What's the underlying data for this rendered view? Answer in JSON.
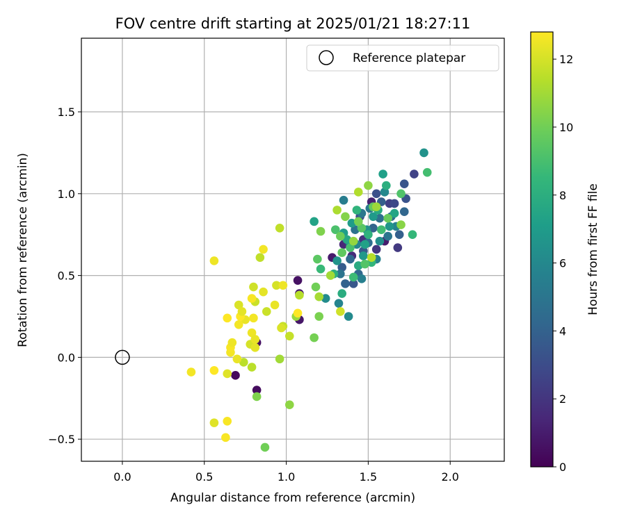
{
  "chart_data": {
    "type": "scatter",
    "title": "FOV centre drift starting at 2025/01/21 18:27:11",
    "xlabel": "Angular distance from reference (arcmin)",
    "ylabel": "Rotation from reference (arcmin)",
    "xlim": [
      -0.25,
      2.33
    ],
    "ylim": [
      -0.635,
      1.95
    ],
    "xticks": [
      0.0,
      0.5,
      1.0,
      1.5,
      2.0
    ],
    "xtick_labels": [
      "0.0",
      "0.5",
      "1.0",
      "1.5",
      "2.0"
    ],
    "yticks": [
      -0.5,
      0.0,
      0.5,
      1.0,
      1.5
    ],
    "ytick_labels": [
      "−0.5",
      "0.0",
      "0.5",
      "1.0",
      "1.5"
    ],
    "grid": true,
    "legend": {
      "position": "top-right",
      "entries": [
        "Reference platepar"
      ]
    },
    "reference_point": {
      "x": 0.0,
      "y": 0.0,
      "marker": "open-circle"
    },
    "colorbar": {
      "label": "Hours from first FF file",
      "colormap": "viridis",
      "range": [
        0,
        12.8
      ],
      "ticks": [
        0,
        2,
        4,
        6,
        8,
        10,
        12
      ],
      "tick_labels": [
        "0",
        "2",
        "4",
        "6",
        "8",
        "10",
        "12"
      ]
    },
    "colormap_stops": [
      "#440154",
      "#482878",
      "#3e4989",
      "#31688e",
      "#26828e",
      "#1f9e89",
      "#35b779",
      "#6ece58",
      "#b5de2b",
      "#fde725"
    ],
    "points": [
      {
        "x": 0.69,
        "y": -0.11,
        "c": 0.3
      },
      {
        "x": 0.82,
        "y": -0.2,
        "c": 0.4
      },
      {
        "x": 0.82,
        "y": 0.09,
        "c": 0.5
      },
      {
        "x": 1.07,
        "y": 0.47,
        "c": 0.6
      },
      {
        "x": 1.08,
        "y": 0.23,
        "c": 0.8
      },
      {
        "x": 1.08,
        "y": 0.39,
        "c": 1.0
      },
      {
        "x": 1.28,
        "y": 0.61,
        "c": 0.9
      },
      {
        "x": 1.6,
        "y": 0.71,
        "c": 1.0
      },
      {
        "x": 1.52,
        "y": 0.95,
        "c": 1.2
      },
      {
        "x": 1.35,
        "y": 0.69,
        "c": 1.4
      },
      {
        "x": 1.4,
        "y": 0.62,
        "c": 1.6
      },
      {
        "x": 1.47,
        "y": 0.72,
        "c": 1.8
      },
      {
        "x": 1.55,
        "y": 0.66,
        "c": 2.0
      },
      {
        "x": 1.68,
        "y": 0.67,
        "c": 2.2
      },
      {
        "x": 1.63,
        "y": 0.94,
        "c": 2.4
      },
      {
        "x": 1.78,
        "y": 1.12,
        "c": 2.6
      },
      {
        "x": 1.66,
        "y": 0.94,
        "c": 2.8
      },
      {
        "x": 1.45,
        "y": 0.86,
        "c": 3.0
      },
      {
        "x": 1.55,
        "y": 1.0,
        "c": 3.2
      },
      {
        "x": 1.73,
        "y": 0.97,
        "c": 3.3
      },
      {
        "x": 1.72,
        "y": 1.06,
        "c": 3.4
      },
      {
        "x": 1.41,
        "y": 0.45,
        "c": 3.5
      },
      {
        "x": 1.47,
        "y": 0.65,
        "c": 3.6
      },
      {
        "x": 1.34,
        "y": 0.55,
        "c": 3.7
      },
      {
        "x": 1.58,
        "y": 0.95,
        "c": 3.8
      },
      {
        "x": 1.69,
        "y": 0.75,
        "c": 3.9
      },
      {
        "x": 1.36,
        "y": 0.45,
        "c": 4.0
      },
      {
        "x": 1.53,
        "y": 0.79,
        "c": 4.1
      },
      {
        "x": 1.72,
        "y": 0.89,
        "c": 4.2
      },
      {
        "x": 1.44,
        "y": 0.51,
        "c": 4.3
      },
      {
        "x": 1.39,
        "y": 0.6,
        "c": 4.4
      },
      {
        "x": 1.64,
        "y": 0.86,
        "c": 4.5
      },
      {
        "x": 1.5,
        "y": 0.7,
        "c": 4.6
      },
      {
        "x": 1.57,
        "y": 0.85,
        "c": 4.7
      },
      {
        "x": 1.42,
        "y": 0.78,
        "c": 4.8
      },
      {
        "x": 1.33,
        "y": 0.51,
        "c": 4.9
      },
      {
        "x": 1.62,
        "y": 0.74,
        "c": 5.0
      },
      {
        "x": 1.46,
        "y": 0.88,
        "c": 5.1
      },
      {
        "x": 1.51,
        "y": 0.91,
        "c": 5.2
      },
      {
        "x": 1.39,
        "y": 0.69,
        "c": 5.3
      },
      {
        "x": 1.35,
        "y": 0.96,
        "c": 5.4
      },
      {
        "x": 1.46,
        "y": 0.48,
        "c": 5.5
      },
      {
        "x": 1.55,
        "y": 0.6,
        "c": 5.6
      },
      {
        "x": 1.67,
        "y": 0.8,
        "c": 5.7
      },
      {
        "x": 1.32,
        "y": 0.33,
        "c": 5.8
      },
      {
        "x": 1.43,
        "y": 0.69,
        "c": 5.9
      },
      {
        "x": 1.6,
        "y": 1.01,
        "c": 6.0
      },
      {
        "x": 1.38,
        "y": 0.25,
        "c": 6.1
      },
      {
        "x": 1.24,
        "y": 0.36,
        "c": 6.2
      },
      {
        "x": 1.57,
        "y": 0.71,
        "c": 6.3
      },
      {
        "x": 1.49,
        "y": 0.78,
        "c": 6.4
      },
      {
        "x": 1.84,
        "y": 1.25,
        "c": 6.5
      },
      {
        "x": 1.31,
        "y": 0.59,
        "c": 6.6
      },
      {
        "x": 1.63,
        "y": 0.8,
        "c": 6.7
      },
      {
        "x": 1.47,
        "y": 0.62,
        "c": 6.8
      },
      {
        "x": 1.53,
        "y": 0.86,
        "c": 6.9
      },
      {
        "x": 1.4,
        "y": 0.82,
        "c": 7.0
      },
      {
        "x": 1.35,
        "y": 0.76,
        "c": 7.1
      },
      {
        "x": 1.59,
        "y": 1.12,
        "c": 7.2
      },
      {
        "x": 1.48,
        "y": 0.69,
        "c": 7.3
      },
      {
        "x": 1.17,
        "y": 0.83,
        "c": 7.4
      },
      {
        "x": 1.66,
        "y": 0.88,
        "c": 7.5
      },
      {
        "x": 1.37,
        "y": 0.72,
        "c": 7.6
      },
      {
        "x": 1.56,
        "y": 0.9,
        "c": 7.7
      },
      {
        "x": 1.44,
        "y": 0.56,
        "c": 7.8
      },
      {
        "x": 1.34,
        "y": 0.39,
        "c": 7.9
      },
      {
        "x": 1.61,
        "y": 1.05,
        "c": 8.0
      },
      {
        "x": 1.29,
        "y": 0.51,
        "c": 8.1
      },
      {
        "x": 1.5,
        "y": 0.75,
        "c": 8.2
      },
      {
        "x": 1.43,
        "y": 0.9,
        "c": 8.3
      },
      {
        "x": 1.52,
        "y": 0.58,
        "c": 8.4
      },
      {
        "x": 1.77,
        "y": 0.75,
        "c": 8.5
      },
      {
        "x": 1.21,
        "y": 0.54,
        "c": 8.6
      },
      {
        "x": 1.41,
        "y": 0.49,
        "c": 8.7
      },
      {
        "x": 1.58,
        "y": 0.78,
        "c": 8.8
      },
      {
        "x": 1.86,
        "y": 1.13,
        "c": 8.9
      },
      {
        "x": 1.39,
        "y": 0.67,
        "c": 9.0
      },
      {
        "x": 1.3,
        "y": 0.78,
        "c": 9.1
      },
      {
        "x": 1.7,
        "y": 1.0,
        "c": 9.2
      },
      {
        "x": 1.48,
        "y": 0.57,
        "c": 9.3
      },
      {
        "x": 1.46,
        "y": 0.79,
        "c": 9.4
      },
      {
        "x": 1.19,
        "y": 0.6,
        "c": 9.5
      },
      {
        "x": 1.34,
        "y": 0.64,
        "c": 9.6
      },
      {
        "x": 1.53,
        "y": 0.92,
        "c": 9.7
      },
      {
        "x": 1.62,
        "y": 0.85,
        "c": 9.8
      },
      {
        "x": 1.33,
        "y": 0.74,
        "c": 9.9
      },
      {
        "x": 1.18,
        "y": 0.43,
        "c": 10.0
      },
      {
        "x": 1.44,
        "y": 0.83,
        "c": 10.1
      },
      {
        "x": 1.2,
        "y": 0.25,
        "c": 10.2
      },
      {
        "x": 0.82,
        "y": -0.24,
        "c": 10.3
      },
      {
        "x": 0.87,
        "y": -0.55,
        "c": 10.0
      },
      {
        "x": 1.17,
        "y": 0.12,
        "c": 10.1
      },
      {
        "x": 1.21,
        "y": 0.77,
        "c": 10.3
      },
      {
        "x": 1.36,
        "y": 0.86,
        "c": 10.4
      },
      {
        "x": 1.7,
        "y": 0.81,
        "c": 10.5
      },
      {
        "x": 1.5,
        "y": 1.05,
        "c": 10.6
      },
      {
        "x": 1.41,
        "y": 0.71,
        "c": 10.7
      },
      {
        "x": 1.06,
        "y": 0.25,
        "c": 10.8
      },
      {
        "x": 1.55,
        "y": 0.92,
        "c": 10.9
      },
      {
        "x": 1.02,
        "y": -0.29,
        "c": 10.6
      },
      {
        "x": 1.27,
        "y": 0.5,
        "c": 11.0
      },
      {
        "x": 1.2,
        "y": 0.37,
        "c": 11.1
      },
      {
        "x": 1.31,
        "y": 0.9,
        "c": 11.2
      },
      {
        "x": 1.44,
        "y": 1.01,
        "c": 11.3
      },
      {
        "x": 0.96,
        "y": -0.01,
        "c": 11.0
      },
      {
        "x": 1.08,
        "y": 0.38,
        "c": 11.4
      },
      {
        "x": 1.52,
        "y": 0.61,
        "c": 11.4
      },
      {
        "x": 0.79,
        "y": -0.06,
        "c": 11.5
      },
      {
        "x": 0.74,
        "y": -0.03,
        "c": 11.5
      },
      {
        "x": 0.96,
        "y": 0.79,
        "c": 11.6
      },
      {
        "x": 0.84,
        "y": 0.61,
        "c": 11.6
      },
      {
        "x": 0.98,
        "y": 0.19,
        "c": 11.7
      },
      {
        "x": 1.02,
        "y": 0.13,
        "c": 11.7
      },
      {
        "x": 0.88,
        "y": 0.28,
        "c": 11.8
      },
      {
        "x": 0.81,
        "y": 0.34,
        "c": 11.8
      },
      {
        "x": 0.8,
        "y": 0.43,
        "c": 11.9
      },
      {
        "x": 1.33,
        "y": 0.28,
        "c": 11.9
      },
      {
        "x": 0.78,
        "y": 0.08,
        "c": 12.0
      },
      {
        "x": 0.94,
        "y": 0.44,
        "c": 12.0
      },
      {
        "x": 0.97,
        "y": 0.18,
        "c": 12.1
      },
      {
        "x": 0.71,
        "y": 0.32,
        "c": 12.1
      },
      {
        "x": 0.56,
        "y": -0.4,
        "c": 12.2
      },
      {
        "x": 0.64,
        "y": -0.1,
        "c": 12.2
      },
      {
        "x": 0.81,
        "y": 0.06,
        "c": 12.3
      },
      {
        "x": 0.86,
        "y": 0.4,
        "c": 12.3
      },
      {
        "x": 0.75,
        "y": 0.23,
        "c": 12.4
      },
      {
        "x": 0.93,
        "y": 0.32,
        "c": 12.4
      },
      {
        "x": 0.98,
        "y": 0.44,
        "c": 12.5
      },
      {
        "x": 0.56,
        "y": 0.59,
        "c": 12.5
      },
      {
        "x": 0.86,
        "y": 0.66,
        "c": 12.6
      },
      {
        "x": 0.42,
        "y": -0.09,
        "c": 12.6
      },
      {
        "x": 0.63,
        "y": -0.49,
        "c": 12.7
      },
      {
        "x": 0.64,
        "y": -0.39,
        "c": 12.7
      },
      {
        "x": 0.56,
        "y": -0.08,
        "c": 12.8
      },
      {
        "x": 0.64,
        "y": 0.24,
        "c": 12.8
      },
      {
        "x": 0.66,
        "y": 0.03,
        "c": 12.6
      },
      {
        "x": 0.66,
        "y": 0.06,
        "c": 12.7
      },
      {
        "x": 0.67,
        "y": 0.09,
        "c": 12.5
      },
      {
        "x": 0.7,
        "y": -0.01,
        "c": 12.4
      },
      {
        "x": 0.71,
        "y": 0.2,
        "c": 12.6
      },
      {
        "x": 0.72,
        "y": 0.25,
        "c": 12.8
      },
      {
        "x": 0.79,
        "y": 0.36,
        "c": 12.7
      },
      {
        "x": 0.79,
        "y": 0.15,
        "c": 12.5
      },
      {
        "x": 0.8,
        "y": 0.24,
        "c": 12.6
      },
      {
        "x": 0.81,
        "y": 0.11,
        "c": 12.4
      },
      {
        "x": 1.07,
        "y": 0.27,
        "c": 12.8
      },
      {
        "x": 0.73,
        "y": 0.28,
        "c": 12.3
      }
    ]
  }
}
